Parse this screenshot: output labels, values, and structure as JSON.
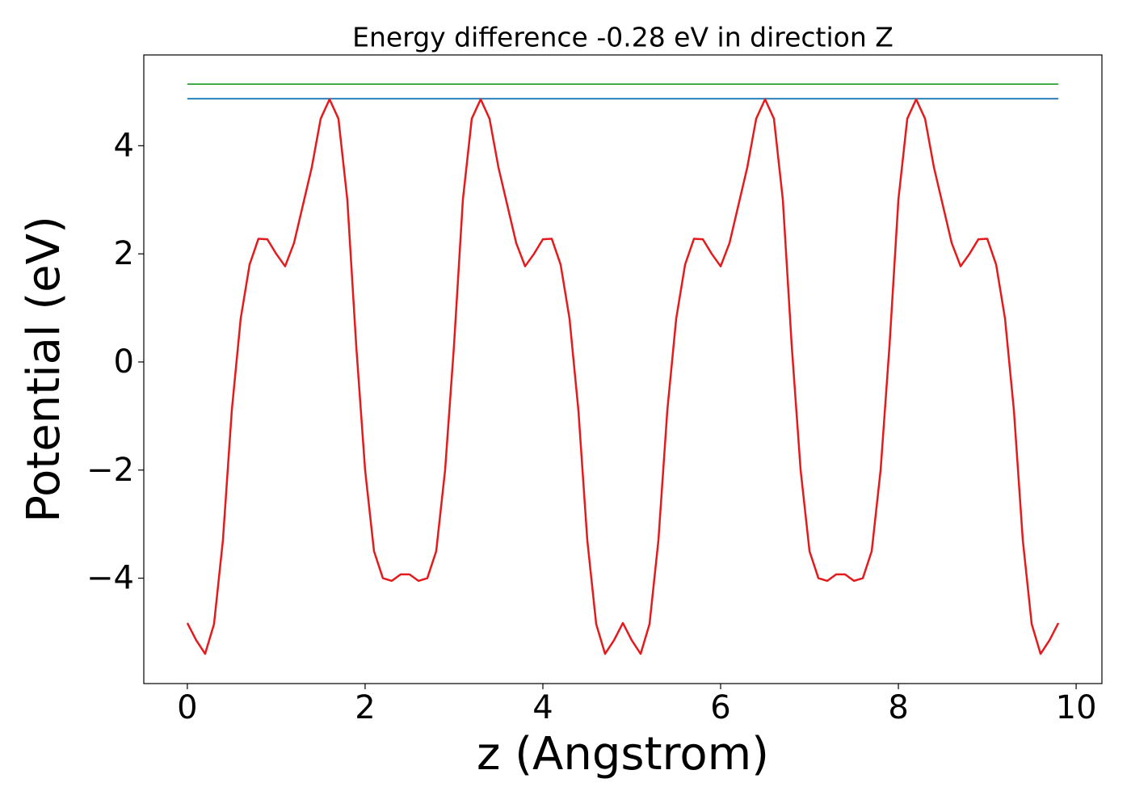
{
  "chart_data": {
    "type": "line",
    "title": "Energy difference -0.28 eV in direction Z",
    "xlabel": "z (Angstrom)",
    "ylabel": "Potential (eV)",
    "x": [
      0,
      0.1,
      0.2,
      0.3,
      0.4,
      0.5,
      0.6,
      0.7,
      0.8,
      0.9,
      1.0,
      1.1,
      1.2,
      1.3,
      1.4,
      1.5,
      1.6,
      1.7,
      1.8,
      1.9,
      2.0,
      2.1,
      2.2,
      2.3,
      2.4,
      2.5,
      2.6,
      2.7,
      2.8,
      2.9,
      3.0,
      3.1,
      3.2,
      3.3,
      3.4,
      3.5,
      3.6,
      3.7,
      3.8,
      3.9,
      4.0,
      4.1,
      4.2,
      4.3,
      4.4,
      4.5,
      4.6,
      4.7,
      4.8,
      4.9,
      5.0,
      5.1,
      5.2,
      5.3,
      5.4,
      5.5,
      5.6,
      5.7,
      5.8,
      5.9,
      6.0,
      6.1,
      6.2,
      6.3,
      6.4,
      6.5,
      6.6,
      6.7,
      6.8,
      6.9,
      7.0,
      7.1,
      7.2,
      7.3,
      7.4,
      7.5,
      7.6,
      7.7,
      7.8,
      7.9,
      8.0,
      8.1,
      8.2,
      8.3,
      8.4,
      8.5,
      8.6,
      8.7,
      8.8,
      8.9,
      9.0,
      9.1,
      9.2,
      9.3,
      9.4,
      9.5,
      9.6,
      9.7,
      9.8
    ],
    "series": [
      {
        "color": "#e41a1c",
        "values": [
          -4.83,
          -5.15,
          -5.4,
          -4.85,
          -3.3,
          -0.9,
          0.8,
          1.8,
          2.28,
          2.27,
          2.0,
          1.77,
          2.2,
          2.9,
          3.6,
          4.5,
          4.86,
          4.5,
          3.0,
          0.3,
          -2.0,
          -3.5,
          -4.0,
          -4.05,
          -3.93,
          -3.93,
          -4.05,
          -4.0,
          -3.5,
          -2.0,
          0.3,
          3.0,
          4.5,
          4.86,
          4.5,
          3.6,
          2.9,
          2.2,
          1.77,
          2.0,
          2.27,
          2.28,
          1.8,
          0.8,
          -0.9,
          -3.3,
          -4.85,
          -5.4,
          -5.15,
          -4.83,
          -5.15,
          -5.4,
          -4.85,
          -3.3,
          -0.9,
          0.8,
          1.8,
          2.28,
          2.27,
          2.0,
          1.77,
          2.2,
          2.9,
          3.6,
          4.5,
          4.86,
          4.5,
          3.0,
          0.3,
          -2.0,
          -3.5,
          -4.0,
          -4.05,
          -3.93,
          -3.93,
          -4.05,
          -4.0,
          -3.5,
          -2.0,
          0.3,
          3.0,
          4.5,
          4.86,
          4.5,
          3.6,
          2.9,
          2.2,
          1.77,
          2.0,
          2.27,
          2.28,
          1.8,
          0.8,
          -0.9,
          -3.3,
          -4.85,
          -5.4,
          -5.15,
          -4.83
        ]
      }
    ],
    "hlines": [
      {
        "value": 4.87,
        "color": "#1f77b4"
      },
      {
        "value": 5.14,
        "color": "#2ca02c"
      }
    ],
    "xlim": [
      -0.49,
      10.29
    ],
    "ylim": [
      -5.95,
      5.68
    ],
    "xticks": [
      0,
      2,
      4,
      6,
      8,
      10
    ],
    "yticks": [
      {
        "value": -4,
        "label": "−4"
      },
      {
        "value": -2,
        "label": "−2"
      },
      0,
      2,
      4
    ]
  }
}
